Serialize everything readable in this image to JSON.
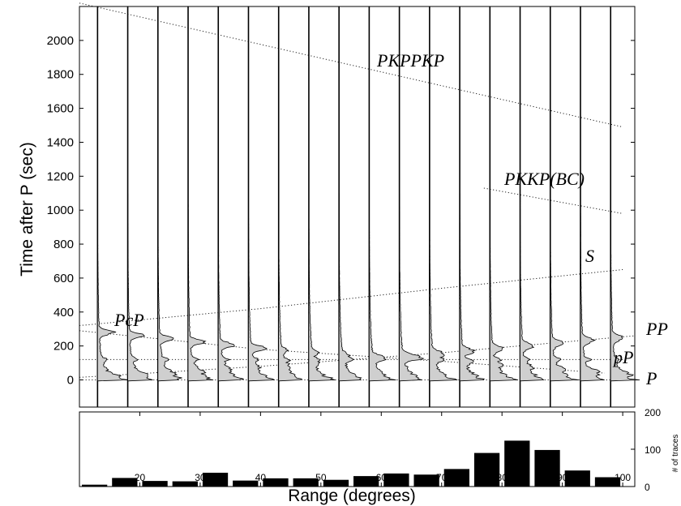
{
  "chart_data": [
    {
      "type": "line",
      "subtype": "seismic record section (stacked envelopes)",
      "xlabel": "Range (degrees)",
      "ylabel": "Time after P (sec)",
      "xlim": [
        10,
        102
      ],
      "ylim": [
        -160,
        2200
      ],
      "yticks": [
        0,
        200,
        400,
        600,
        800,
        1000,
        1200,
        1400,
        1600,
        1800,
        2000
      ],
      "trace_ranges": [
        13,
        18,
        23,
        28,
        33,
        38,
        43,
        48,
        53,
        58,
        63,
        68,
        73,
        78,
        83,
        88,
        93,
        98
      ],
      "phases": [
        {
          "name": "P",
          "points": [
            [
              10,
              0
            ],
            [
              102,
              0
            ]
          ]
        },
        {
          "name": "pP",
          "points": [
            [
              10,
              120
            ],
            [
              100,
              120
            ]
          ]
        },
        {
          "name": "PcP",
          "points": [
            [
              10,
              290
            ],
            [
              40,
              180
            ],
            [
              70,
              110
            ],
            [
              97,
              40
            ]
          ]
        },
        {
          "name": "PP",
          "points": [
            [
              10,
              15
            ],
            [
              40,
              80
            ],
            [
              70,
              160
            ],
            [
              102,
              260
            ]
          ]
        },
        {
          "name": "S",
          "points": [
            [
              10,
              320
            ],
            [
              40,
              420
            ],
            [
              70,
              540
            ],
            [
              100,
              650
            ]
          ]
        },
        {
          "name": "PKKP(BC)",
          "points": [
            [
              77,
              1130
            ],
            [
              100,
              980
            ]
          ]
        },
        {
          "name": "PKPPKP",
          "points": [
            [
              10,
              2220
            ],
            [
              100,
              1490
            ]
          ]
        }
      ],
      "phase_labels": [
        "PcP",
        "PKPPKP",
        "PKKP(BC)",
        "S",
        "PP",
        "pP",
        "P"
      ]
    },
    {
      "type": "bar",
      "ylabel": "# of traces",
      "ylim": [
        0,
        200
      ],
      "yticks": [
        0,
        100,
        200
      ],
      "xticks": [
        20,
        30,
        40,
        50,
        60,
        70,
        80,
        90,
        100
      ],
      "categories": [
        12.5,
        17.5,
        22.5,
        27.5,
        32.5,
        37.5,
        42.5,
        47.5,
        52.5,
        57.5,
        62.5,
        67.5,
        72.5,
        77.5,
        82.5,
        87.5,
        92.5,
        97.5
      ],
      "values": [
        5,
        23,
        15,
        14,
        37,
        16,
        22,
        22,
        18,
        28,
        35,
        32,
        47,
        90,
        123,
        98,
        43,
        25
      ]
    }
  ]
}
